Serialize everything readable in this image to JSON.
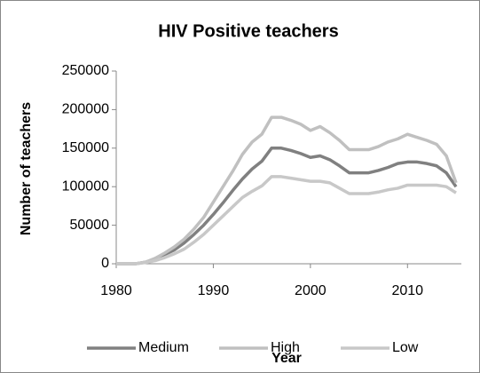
{
  "chart_data": {
    "type": "line",
    "title": "HIV Positive teachers",
    "x_label": "Year",
    "y_label": "Number of teachers",
    "x": [
      1980,
      1981,
      1982,
      1983,
      1984,
      1985,
      1986,
      1987,
      1988,
      1989,
      1990,
      1991,
      1992,
      1993,
      1994,
      1995,
      1996,
      1997,
      1998,
      1999,
      2000,
      2001,
      2002,
      2003,
      2004,
      2005,
      2006,
      2007,
      2008,
      2009,
      2010,
      2011,
      2012,
      2013,
      2014,
      2015
    ],
    "series": [
      {
        "name": "Medium",
        "color": "#808080",
        "values": [
          0,
          0,
          0,
          2000,
          6000,
          12000,
          18000,
          27000,
          38000,
          50000,
          64000,
          79000,
          95000,
          110000,
          123000,
          133000,
          150000,
          150000,
          147000,
          143000,
          138000,
          140000,
          135000,
          127000,
          118000,
          118000,
          118000,
          121000,
          125000,
          130000,
          132000,
          132000,
          130000,
          127000,
          118000,
          100000
        ]
      },
      {
        "name": "High",
        "color": "#c0c0c0",
        "values": [
          0,
          0,
          0,
          2000,
          7000,
          14000,
          22000,
          32000,
          45000,
          60000,
          80000,
          100000,
          120000,
          142000,
          158000,
          168000,
          190000,
          190000,
          186000,
          181000,
          173000,
          178000,
          170000,
          160000,
          148000,
          148000,
          148000,
          152000,
          158000,
          162000,
          168000,
          164000,
          160000,
          155000,
          140000,
          105000
        ]
      },
      {
        "name": "Low",
        "color": "#c8c8c8",
        "values": [
          0,
          0,
          0,
          1500,
          4000,
          8000,
          13000,
          19000,
          28000,
          38000,
          50000,
          62000,
          74000,
          86000,
          94000,
          101000,
          113000,
          113000,
          111000,
          109000,
          107000,
          107000,
          105000,
          98000,
          91000,
          91000,
          91000,
          93000,
          96000,
          98000,
          102000,
          102000,
          102000,
          102000,
          100000,
          92000
        ]
      }
    ],
    "xlim": [
      1980,
      2015
    ],
    "xticks": [
      1980,
      1990,
      2000,
      2010
    ],
    "ylim": [
      0,
      250000
    ],
    "yticks": [
      0,
      50000,
      100000,
      150000,
      200000,
      250000
    ]
  }
}
